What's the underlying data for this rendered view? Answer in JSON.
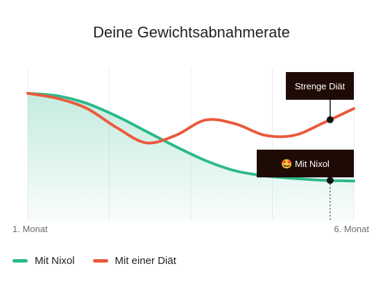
{
  "chart_data": {
    "type": "line",
    "title": "Deine Gewichtsabnahmerate",
    "x_tick_labels": [
      "1. Monat",
      "6. Monat"
    ],
    "x": [
      0,
      0.5,
      1,
      1.5,
      2,
      2.5,
      3,
      3.5,
      4,
      4.5,
      5,
      5.5
    ],
    "series": [
      {
        "name": "Mit Nixol",
        "color": "#2cb98a",
        "values": [
          100,
          98,
          92,
          82,
          70,
          58,
          47,
          39,
          35,
          33,
          31.5,
          31
        ]
      },
      {
        "name": "Mit einer Diät",
        "color": "#ea5a3c",
        "values": [
          100,
          96,
          88,
          73,
          61,
          67,
          79,
          76,
          67,
          67,
          77,
          88
        ]
      }
    ],
    "ylim": [
      0,
      120
    ],
    "grid": "vertical",
    "annotations": [
      {
        "label": "Strenge Diät",
        "series": 1,
        "x": 5.1,
        "emoji": ""
      },
      {
        "label": "Mit Nixol",
        "series": 0,
        "x": 5.1,
        "emoji": "🤩"
      }
    ],
    "legend_position": "bottom-left"
  }
}
